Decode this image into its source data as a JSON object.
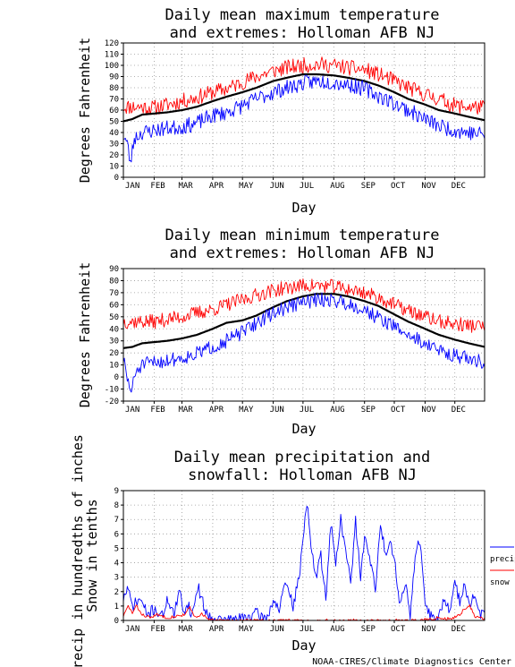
{
  "credit": "NOAA-CIRES/Climate Diagnostics Center",
  "chart_data": [
    {
      "type": "line",
      "title": [
        "Daily mean maximum temperature",
        "and extremes: Holloman AFB NJ"
      ],
      "xlabel": "Day",
      "ylabel": "Degrees Fahrenheit",
      "ylim": [
        0,
        120
      ],
      "yticks": [
        0,
        10,
        20,
        30,
        40,
        50,
        60,
        70,
        80,
        90,
        100,
        110,
        120
      ],
      "xlim": [
        1,
        365
      ],
      "month_labels": [
        "JAN",
        "FEB",
        "MAR",
        "APR",
        "MAY",
        "JUN",
        "JUL",
        "AUG",
        "SEP",
        "OCT",
        "NOV",
        "DEC"
      ],
      "month_start_days": [
        1,
        32,
        60,
        91,
        121,
        152,
        182,
        213,
        244,
        274,
        305,
        335
      ],
      "grid": true,
      "series": [
        {
          "name": "",
          "color": "#ff0000",
          "days": [
            1,
            15,
            32,
            46,
            60,
            74,
            91,
            105,
            121,
            135,
            152,
            166,
            182,
            196,
            213,
            227,
            244,
            258,
            274,
            288,
            305,
            319,
            335,
            349,
            365
          ],
          "values": [
            63,
            63,
            62,
            65,
            68,
            71,
            76,
            79,
            85,
            90,
            95,
            98,
            100,
            101,
            100,
            98,
            96,
            92,
            86,
            80,
            74,
            70,
            64,
            63,
            62
          ],
          "noise": 7,
          "seed": 11
        },
        {
          "name": "",
          "color": "#000000",
          "days": [
            1,
            10,
            20,
            32,
            45,
            60,
            75,
            91,
            105,
            121,
            135,
            152,
            166,
            182,
            196,
            213,
            227,
            244,
            258,
            274,
            288,
            305,
            319,
            335,
            349,
            365
          ],
          "values": [
            50,
            52,
            56,
            57,
            58,
            60,
            63,
            68,
            72,
            76,
            80,
            86,
            89,
            92,
            92,
            91,
            89,
            86,
            82,
            76,
            70,
            65,
            60,
            57,
            54,
            51
          ],
          "noise": 0,
          "seed": 0
        },
        {
          "name": "",
          "color": "#0000ff",
          "days": [
            1,
            5,
            8,
            12,
            20,
            32,
            46,
            60,
            74,
            91,
            105,
            121,
            135,
            152,
            166,
            182,
            196,
            213,
            227,
            244,
            258,
            274,
            288,
            305,
            319,
            335,
            349,
            365
          ],
          "values": [
            38,
            30,
            12,
            35,
            40,
            42,
            44,
            45,
            48,
            55,
            58,
            64,
            70,
            76,
            80,
            84,
            86,
            85,
            83,
            79,
            73,
            66,
            60,
            52,
            46,
            42,
            40,
            38
          ],
          "noise": 7,
          "seed": 23
        }
      ]
    },
    {
      "type": "line",
      "title": [
        "Daily mean minimum temperature",
        "and extremes: Holloman AFB NJ"
      ],
      "xlabel": "Day",
      "ylabel": "Degrees Fahrenheit",
      "ylim": [
        -20,
        90
      ],
      "yticks": [
        -20,
        -10,
        0,
        10,
        20,
        30,
        40,
        50,
        60,
        70,
        80,
        90
      ],
      "xlim": [
        1,
        365
      ],
      "month_labels": [
        "JAN",
        "FEB",
        "MAR",
        "APR",
        "MAY",
        "JUN",
        "JUL",
        "AUG",
        "SEP",
        "OCT",
        "NOV",
        "DEC"
      ],
      "month_start_days": [
        1,
        32,
        60,
        91,
        121,
        152,
        182,
        213,
        244,
        274,
        305,
        335
      ],
      "grid": true,
      "series": [
        {
          "name": "",
          "color": "#ff0000",
          "days": [
            1,
            15,
            32,
            46,
            60,
            74,
            91,
            105,
            121,
            135,
            152,
            166,
            182,
            196,
            213,
            227,
            244,
            258,
            274,
            288,
            305,
            319,
            335,
            349,
            365
          ],
          "values": [
            46,
            46,
            46,
            48,
            50,
            53,
            56,
            60,
            64,
            68,
            72,
            74,
            76,
            76,
            75,
            73,
            70,
            66,
            60,
            55,
            50,
            46,
            44,
            43,
            42
          ],
          "noise": 6,
          "seed": 37
        },
        {
          "name": "",
          "color": "#000000",
          "days": [
            1,
            10,
            20,
            32,
            45,
            60,
            75,
            91,
            105,
            121,
            135,
            152,
            166,
            182,
            196,
            213,
            227,
            244,
            258,
            274,
            288,
            305,
            319,
            335,
            349,
            365
          ],
          "values": [
            24,
            25,
            28,
            29,
            30,
            32,
            35,
            40,
            45,
            47,
            51,
            58,
            63,
            67,
            69,
            69,
            67,
            63,
            59,
            52,
            46,
            40,
            35,
            31,
            28,
            25
          ],
          "noise": 0,
          "seed": 0
        },
        {
          "name": "",
          "color": "#0000ff",
          "days": [
            1,
            5,
            9,
            14,
            20,
            32,
            46,
            60,
            74,
            91,
            105,
            121,
            135,
            152,
            166,
            182,
            196,
            213,
            227,
            244,
            258,
            274,
            288,
            305,
            319,
            335,
            349,
            365
          ],
          "values": [
            15,
            -2,
            -12,
            5,
            10,
            12,
            14,
            16,
            19,
            25,
            30,
            37,
            45,
            53,
            58,
            62,
            64,
            64,
            61,
            56,
            49,
            42,
            35,
            28,
            22,
            18,
            15,
            12
          ],
          "noise": 6,
          "seed": 51
        }
      ]
    },
    {
      "type": "line",
      "title": [
        "Daily mean precipitation and",
        "snowfall: Holloman AFB NJ"
      ],
      "xlabel": "Day",
      "ylabel": [
        "Precip in hundredths of inches",
        "Snow in tenths"
      ],
      "ylim": [
        0,
        9
      ],
      "yticks": [
        0,
        1,
        2,
        3,
        4,
        5,
        6,
        7,
        8,
        9
      ],
      "xlim": [
        1,
        365
      ],
      "month_labels": [
        "JAN",
        "FEB",
        "MAR",
        "APR",
        "MAY",
        "JUN",
        "JUL",
        "AUG",
        "SEP",
        "OCT",
        "NOV",
        "DEC"
      ],
      "month_start_days": [
        1,
        32,
        60,
        91,
        121,
        152,
        182,
        213,
        244,
        274,
        305,
        335
      ],
      "grid": true,
      "legend": {
        "position": "right",
        "entries": [
          {
            "label": "precip",
            "color": "#0000ff"
          },
          {
            "label": "snow",
            "color": "#ff0000"
          }
        ]
      },
      "series": [
        {
          "name": "precip",
          "color": "#0000ff",
          "days": [
            1,
            5,
            10,
            18,
            25,
            32,
            40,
            46,
            52,
            58,
            62,
            66,
            70,
            76,
            82,
            88,
            95,
            105,
            115,
            125,
            135,
            145,
            152,
            158,
            165,
            172,
            178,
            182,
            186,
            190,
            195,
            200,
            205,
            210,
            215,
            220,
            225,
            230,
            235,
            240,
            245,
            250,
            255,
            260,
            265,
            270,
            275,
            280,
            285,
            290,
            295,
            300,
            305,
            310,
            315,
            320,
            325,
            330,
            335,
            340,
            345,
            350,
            355,
            360,
            365
          ],
          "values": [
            1.5,
            2.2,
            1.0,
            1.5,
            0.4,
            0.8,
            0.3,
            1.5,
            0.4,
            2.0,
            0.6,
            1.2,
            0.3,
            2.4,
            1.0,
            0.2,
            0.1,
            0.0,
            0.1,
            0.2,
            0.5,
            0.1,
            1.4,
            0.8,
            2.6,
            1.0,
            2.9,
            5.8,
            8.3,
            5.0,
            3.0,
            4.5,
            1.5,
            6.8,
            3.8,
            7.1,
            4.8,
            2.6,
            6.9,
            3.0,
            6.1,
            4.0,
            2.1,
            6.6,
            4.7,
            5.6,
            3.8,
            1.0,
            2.8,
            0.3,
            4.6,
            5.5,
            1.0,
            0.4,
            0.1,
            0.5,
            1.6,
            0.6,
            2.5,
            1.4,
            2.7,
            0.9,
            1.8,
            0.4,
            0.6
          ],
          "noise": 0.4,
          "seed": 71
        },
        {
          "name": "snow",
          "color": "#ff0000",
          "days": [
            1,
            6,
            10,
            14,
            20,
            28,
            35,
            45,
            55,
            62,
            68,
            72,
            76,
            80,
            86,
            92,
            100,
            300,
            310,
            320,
            330,
            338,
            345,
            350,
            355,
            360,
            365
          ],
          "values": [
            0.3,
            1.0,
            0.5,
            1.0,
            0.4,
            0.2,
            0.4,
            0.2,
            0.3,
            0.4,
            0.9,
            0.3,
            0.2,
            0.5,
            0.1,
            0.0,
            0.0,
            0.0,
            0.1,
            0.2,
            0.1,
            0.3,
            0.8,
            1.0,
            0.3,
            0.2,
            0.1
          ],
          "noise": 0.1,
          "seed": 83
        }
      ]
    }
  ]
}
